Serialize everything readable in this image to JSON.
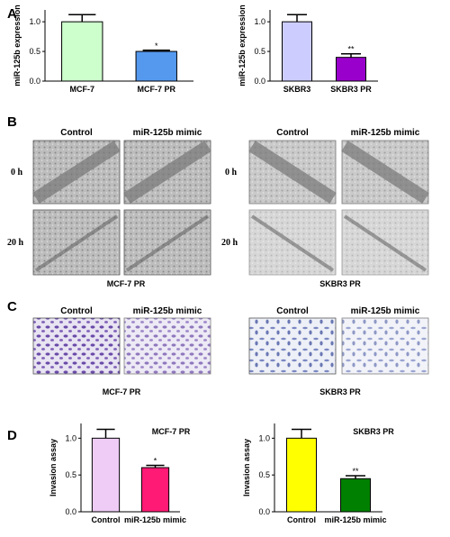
{
  "panels": {
    "a": "A",
    "b": "B",
    "c": "C",
    "d": "D"
  },
  "images": {
    "headers": [
      "Control",
      "miR-125b mimic"
    ],
    "rows": [
      "0 h",
      "20 h"
    ],
    "captions": [
      "MCF-7 PR",
      "SKBR3 PR"
    ]
  },
  "chart_data": [
    {
      "type": "bar",
      "ylabel": "miR-125b expression",
      "categories": [
        "MCF-7",
        "MCF-7 PR"
      ],
      "values": [
        1.0,
        0.5
      ],
      "errors": [
        0.12,
        0.02
      ],
      "colors": [
        "#ccffcc",
        "#5599ee"
      ],
      "significance": [
        null,
        "*"
      ],
      "ylim": [
        0,
        1.2
      ],
      "yticks": [
        {
          "value": 0,
          "label": "0.0"
        },
        {
          "value": 0.5,
          "label": "0.5"
        },
        {
          "value": 1,
          "label": "1.0"
        }
      ]
    },
    {
      "type": "bar",
      "ylabel": "miR-125b expression",
      "categories": [
        "SKBR3",
        "SKBR3 PR"
      ],
      "values": [
        1.0,
        0.4
      ],
      "errors": [
        0.12,
        0.06
      ],
      "colors": [
        "#ccccff",
        "#9900cc"
      ],
      "significance": [
        null,
        "**"
      ],
      "ylim": [
        0,
        1.2
      ],
      "yticks": [
        {
          "value": 0,
          "label": "0.0"
        },
        {
          "value": 0.5,
          "label": "0.5"
        },
        {
          "value": 1,
          "label": "1.0"
        }
      ]
    },
    {
      "type": "bar",
      "title": "MCF-7 PR",
      "ylabel": "Invasion assay",
      "categories": [
        "Control",
        "miR-125b mimic"
      ],
      "values": [
        1.0,
        0.6
      ],
      "errors": [
        0.12,
        0.03
      ],
      "colors": [
        "#eeccf5",
        "#ff1a75"
      ],
      "significance": [
        null,
        "*"
      ],
      "ylim": [
        0,
        1.2
      ],
      "yticks": [
        {
          "value": 0,
          "label": "0.0"
        },
        {
          "value": 0.5,
          "label": "0.5"
        },
        {
          "value": 1,
          "label": "1.0"
        }
      ]
    },
    {
      "type": "bar",
      "title": "SKBR3 PR",
      "ylabel": "Invasion assay",
      "categories": [
        "Control",
        "miR-125b mimic"
      ],
      "values": [
        1.0,
        0.45
      ],
      "errors": [
        0.12,
        0.04
      ],
      "colors": [
        "#ffff00",
        "#008000"
      ],
      "significance": [
        null,
        "**"
      ],
      "ylim": [
        0,
        1.2
      ],
      "yticks": [
        {
          "value": 0,
          "label": "0.0"
        },
        {
          "value": 0.5,
          "label": "0.5"
        },
        {
          "value": 1,
          "label": "1.0"
        }
      ]
    }
  ]
}
